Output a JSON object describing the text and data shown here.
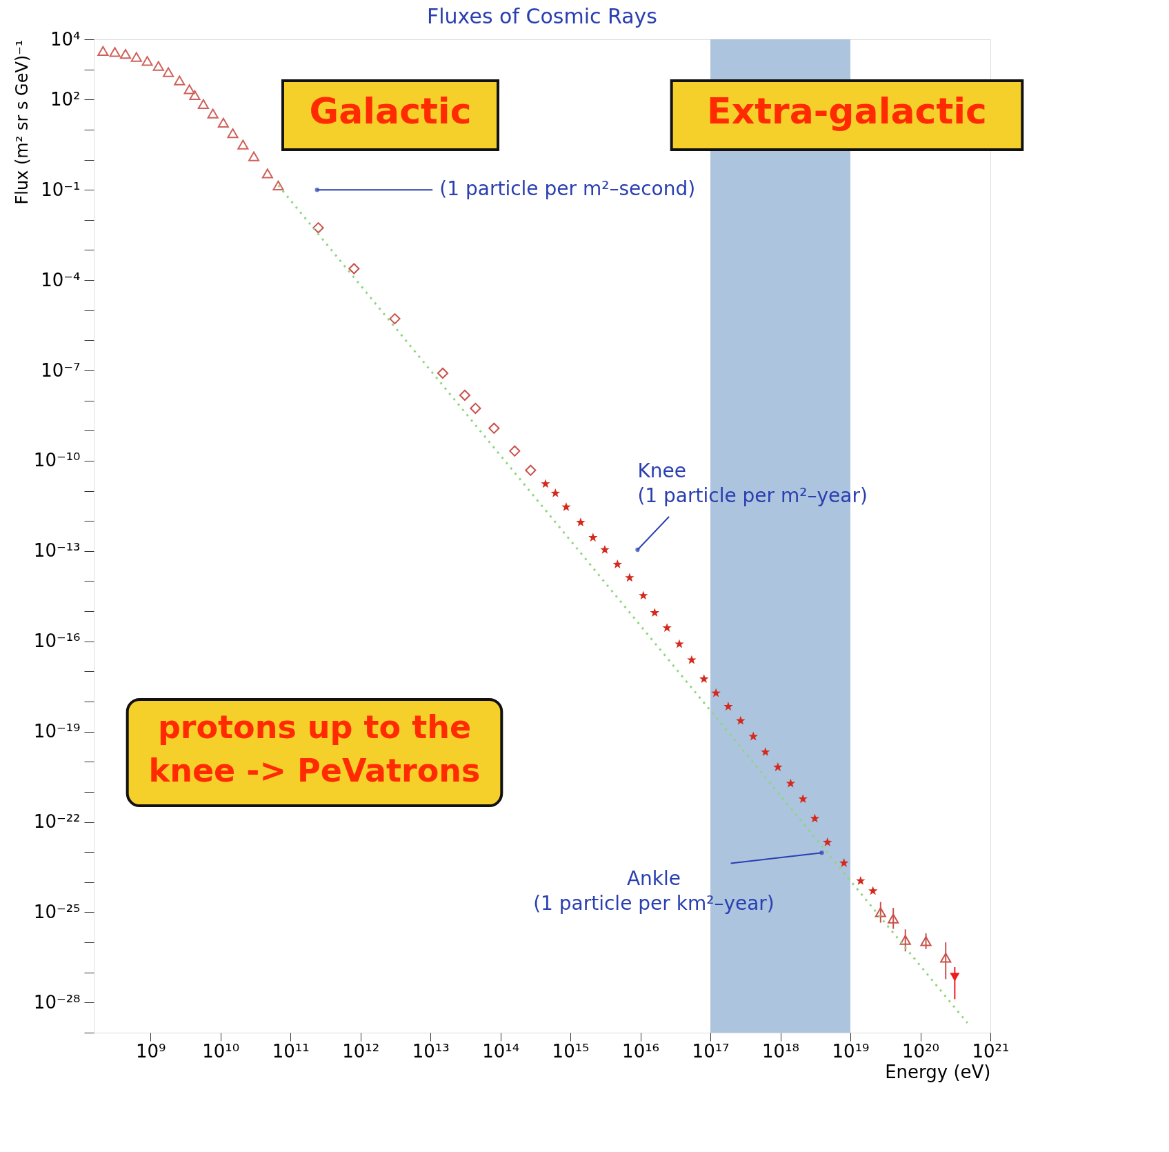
{
  "chart_data": {
    "type": "scatter",
    "title": "Fluxes of Cosmic Rays",
    "xlabel": "Energy (eV)",
    "ylabel": "Flux (m² sr s GeV)⁻¹",
    "log": "xy",
    "grid": false,
    "xlim": [
      155000000.0,
      1e+21
    ],
    "ylim": [
      1e-29,
      10000.0
    ],
    "xticks": [
      {
        "value": 1000000000.0,
        "label": "10⁹"
      },
      {
        "value": 10000000000.0,
        "label": "10¹⁰"
      },
      {
        "value": 100000000000.0,
        "label": "10¹¹"
      },
      {
        "value": 1000000000000.0,
        "label": "10¹²"
      },
      {
        "value": 10000000000000.0,
        "label": "10¹³"
      },
      {
        "value": 100000000000000.0,
        "label": "10¹⁴"
      },
      {
        "value": 1000000000000000.0,
        "label": "10¹⁵"
      },
      {
        "value": 1e+16,
        "label": "10¹⁶"
      },
      {
        "value": 1e+17,
        "label": "10¹⁷"
      },
      {
        "value": 1e+18,
        "label": "10¹⁸"
      },
      {
        "value": 1e+19,
        "label": "10¹⁹"
      },
      {
        "value": 1e+20,
        "label": "10²⁰"
      },
      {
        "value": 1e+21,
        "label": "10²¹"
      }
    ],
    "yticks": [
      {
        "value": 10000.0,
        "label": "10⁴"
      },
      {
        "value": 1000.0,
        "label": null
      },
      {
        "value": 100.0,
        "label": "10²"
      },
      {
        "value": 10.0,
        "label": null
      },
      {
        "value": 1,
        "label": null
      },
      {
        "value": 0.1,
        "label": "10⁻¹"
      },
      {
        "value": 0.01,
        "label": null
      },
      {
        "value": 0.001,
        "label": null
      },
      {
        "value": 0.0001,
        "label": "10⁻⁴"
      },
      {
        "value": 1e-05,
        "label": null
      },
      {
        "value": 1e-06,
        "label": null
      },
      {
        "value": 1e-07,
        "label": "10⁻⁷"
      },
      {
        "value": 1e-08,
        "label": null
      },
      {
        "value": 1e-09,
        "label": null
      },
      {
        "value": 1e-10,
        "label": "10⁻¹⁰"
      },
      {
        "value": 1e-11,
        "label": null
      },
      {
        "value": 1e-12,
        "label": null
      },
      {
        "value": 1e-13,
        "label": "10⁻¹³"
      },
      {
        "value": 1e-14,
        "label": null
      },
      {
        "value": 1e-15,
        "label": null
      },
      {
        "value": 1e-16,
        "label": "10⁻¹⁶"
      },
      {
        "value": 1e-17,
        "label": null
      },
      {
        "value": 1e-18,
        "label": null
      },
      {
        "value": 1e-19,
        "label": "10⁻¹⁹"
      },
      {
        "value": 1e-20,
        "label": null
      },
      {
        "value": 1e-21,
        "label": null
      },
      {
        "value": 1e-22,
        "label": "10⁻²²"
      },
      {
        "value": 1e-23,
        "label": null
      },
      {
        "value": 1e-24,
        "label": null
      },
      {
        "value": 1e-25,
        "label": "10⁻²⁵"
      },
      {
        "value": 1e-26,
        "label": null
      },
      {
        "value": 1e-27,
        "label": null
      },
      {
        "value": 1e-28,
        "label": "10⁻²⁸"
      },
      {
        "value": 1e-29,
        "label": null
      }
    ],
    "bands": [
      {
        "axis": "x",
        "from": 1e+17,
        "to": 1e+19,
        "color": "#9dbad8"
      }
    ],
    "series": [
      {
        "type": "scatter",
        "marker": "triangle",
        "color": "#d0605a",
        "x": [
          210000000.0,
          310000000.0,
          440000000.0,
          630000000.0,
          900000000.0,
          1300000000.0,
          1800000000.0,
          2600000000.0,
          3600000000.0,
          4300000000.0,
          5700000000.0,
          7800000000.0,
          11000000000.0,
          15000000000.0,
          21000000000.0,
          30000000000.0,
          47000000000.0,
          67000000000.0
        ],
        "values": [
          4100,
          3800,
          3300,
          2600,
          1900,
          1300,
          810,
          430,
          220,
          140,
          71,
          34,
          17,
          7.6,
          3.2,
          1.3,
          0.35,
          0.14
        ]
      },
      {
        "type": "scatter",
        "marker": "diamond",
        "color": "#c8504a",
        "x": [
          250000000000.0,
          810000000000.0,
          3100000000000.0,
          15000000000000.0,
          31000000000000.0,
          44000000000000.0,
          81000000000000.0,
          160000000000000.0,
          270000000000000.0
        ],
        "values": [
          0.0055,
          0.00024,
          5.2e-06,
          8.1e-08,
          1.5e-08,
          5.5e-09,
          1.2e-09,
          2.1e-10,
          4.8e-11
        ]
      },
      {
        "type": "scatter",
        "marker": "star",
        "color": "#d42a1e",
        "x": [
          440000000000000.0,
          610000000000000.0,
          870000000000000.0,
          1400000000000000.0,
          2100000000000000.0,
          3100000000000000.0,
          4700000000000000.0,
          7000000000000000.0,
          1.1e+16,
          1.6e+16,
          2.4e+16,
          3.6e+16,
          5.4e+16,
          8.1e+16,
          1.2e+17,
          1.8e+17,
          2.7e+17,
          4.1e+17,
          6.1e+17,
          9.2e+17,
          1.4e+18,
          2.1e+18,
          3.1e+18,
          4.7e+18,
          8.1e+18,
          1.4e+19,
          2.1e+19
        ],
        "values": [
          1.7e-11,
          8.3e-12,
          2.9e-12,
          8.9e-13,
          2.8e-13,
          1.1e-13,
          3.6e-14,
          1.3e-14,
          3.3e-15,
          8.9e-16,
          2.8e-16,
          8.1e-17,
          2.4e-17,
          5.6e-18,
          1.9e-18,
          6.8e-19,
          2.3e-19,
          6.9e-20,
          2.1e-20,
          6.6e-21,
          1.9e-21,
          5.8e-22,
          1.3e-22,
          2.1e-23,
          4.3e-24,
          1.1e-24,
          5.1e-25
        ]
      },
      {
        "type": "scatter",
        "marker": "triangle",
        "color": "#c8504a",
        "x": [
          2.7e+19,
          4.1e+19,
          6.1e+19,
          1.2e+20,
          2.3e+20
        ],
        "values": [
          1e-25,
          6.2e-26,
          1.2e-26,
          1.1e-26,
          3.1e-27
        ],
        "errors": [
          [
            4.5e-26,
            2.2e-25
          ],
          [
            2.8e-26,
            1.4e-25
          ],
          [
            5e-27,
            2.7e-26
          ],
          [
            6e-27,
            2e-26
          ],
          [
            6e-28,
            1e-26
          ]
        ]
      },
      {
        "type": "scatter",
        "marker": "triangle-down",
        "color": "#ee1c1c",
        "x": [
          3.1e+20
        ],
        "values": [
          7e-28
        ],
        "errors": [
          [
            1.3e-28,
            1.5e-27
          ]
        ]
      },
      {
        "type": "line",
        "line_style": "dotted",
        "marker": "none",
        "color": "#8fd67f",
        "x": [
          67000000000.0,
          4.7e+20
        ],
        "values": [
          0.14,
          2.1e-29
        ]
      }
    ],
    "annotations": [
      "Galactic",
      "Extra-galactic",
      "protons up to the\nknee -> PeVatrons",
      {
        "text": "(1 particle per m²–second)",
        "x": 240000000000.0,
        "y": 0.1
      },
      {
        "text": "Knee\n(1 particle per m²–year)",
        "x": 9100000000000000.0,
        "y": 1.1e-13
      },
      {
        "text": "Ankle\n\n(1 particle per km²–year)",
        "x": 3.9e+18,
        "y": 9.5e-24
      }
    ]
  }
}
